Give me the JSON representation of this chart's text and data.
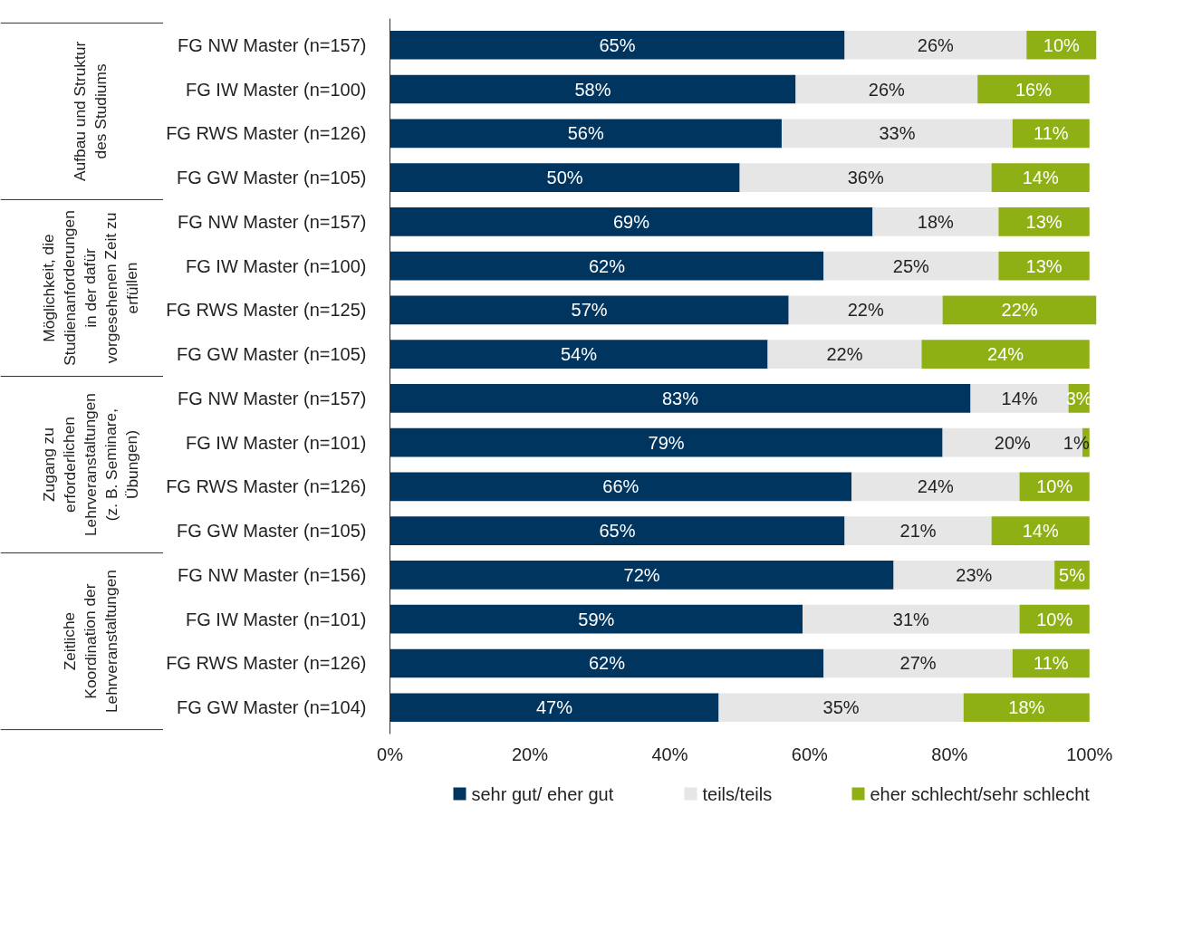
{
  "chart_data": {
    "type": "bar",
    "orientation": "horizontal",
    "stacked": true,
    "legend": "bottom",
    "grid": false,
    "categories": [
      "FG NW Master (n=157)",
      "FG IW Master (n=100)",
      "FG RWS Master (n=126)",
      "FG GW Master (n=105)",
      "FG NW Master (n=157)",
      "FG IW Master (n=100)",
      "FG RWS Master (n=125)",
      "FG GW Master (n=105)",
      "FG NW Master (n=157)",
      "FG IW Master (n=101)",
      "FG RWS Master (n=126)",
      "FG GW Master (n=105)",
      "FG NW Master (n=156)",
      "FG IW Master (n=101)",
      "FG RWS Master (n=126)",
      "FG GW Master (n=104)"
    ],
    "series": [
      {
        "name": "sehr gut/ eher gut",
        "color": "#003560",
        "values": [
          65,
          58,
          56,
          50,
          69,
          62,
          57,
          54,
          83,
          79,
          66,
          65,
          72,
          59,
          62,
          47
        ],
        "value_labels": [
          "65%",
          "58%",
          "56%",
          "50%",
          "69%",
          "62%",
          "57%",
          "54%",
          "83%",
          "79%",
          "66%",
          "65%",
          "72%",
          "59%",
          "62%",
          "47%"
        ]
      },
      {
        "name": "teils/teils",
        "color": "#e6e6e6",
        "values": [
          26,
          26,
          33,
          36,
          18,
          25,
          22,
          22,
          14,
          20,
          24,
          21,
          23,
          31,
          27,
          35
        ],
        "value_labels": [
          "26%",
          "26%",
          "33%",
          "36%",
          "18%",
          "25%",
          "22%",
          "22%",
          "14%",
          "20%",
          "24%",
          "21%",
          "23%",
          "31%",
          "27%",
          "35%"
        ]
      },
      {
        "name": "eher schlecht/sehr schlecht",
        "color": "#8fb014",
        "values": [
          10,
          16,
          11,
          14,
          13,
          13,
          22,
          24,
          3,
          1,
          10,
          14,
          5,
          10,
          11,
          18
        ],
        "value_labels": [
          "10%",
          "16%",
          "11%",
          "14%",
          "13%",
          "13%",
          "22%",
          "24%",
          "3%",
          "1%",
          "10%",
          "14%",
          "5%",
          "10%",
          "11%",
          "18%"
        ]
      }
    ],
    "xlim": [
      0,
      101
    ],
    "xticks": [
      {
        "value": 0,
        "label": "0%"
      },
      {
        "value": 20,
        "label": "20%"
      },
      {
        "value": 40,
        "label": "40%"
      },
      {
        "value": 60,
        "label": "60%"
      },
      {
        "value": 80,
        "label": "80%"
      },
      {
        "value": 100,
        "label": "100%"
      }
    ],
    "annotations": [
      "Aufbau und Struktur des Studiums",
      "Möglichkeit, die Studienanforderungen in der dafür vorgesehenen Zeit zu erfüllen",
      "Zugang zu erforderlichen Lehrveranstaltungen (z. B. Seminare, Übungen)",
      "Zeitliche Koordination der Lehrveranstaltungen"
    ]
  }
}
